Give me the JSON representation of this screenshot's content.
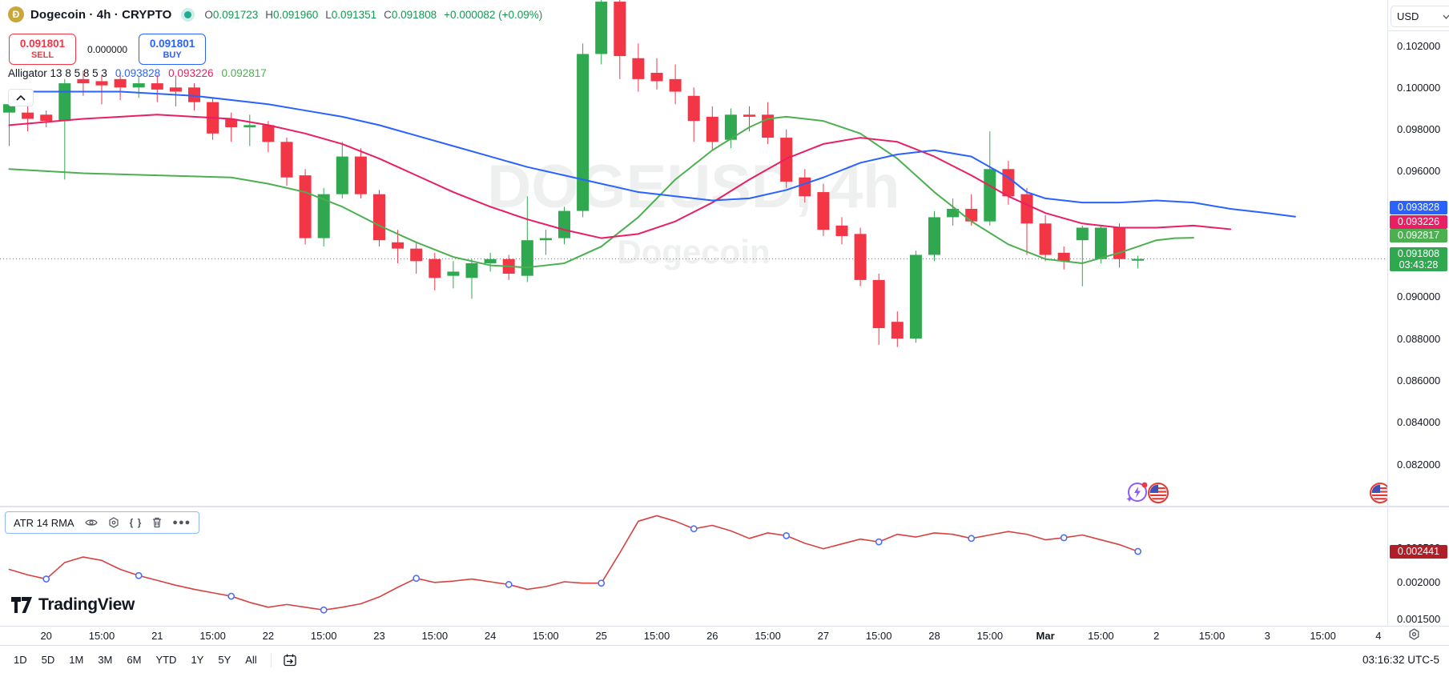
{
  "header": {
    "title": "Dogecoin · 4h · CRYPTO",
    "logo_letter": "Ð",
    "ohlc": {
      "o_label": "O",
      "o": "0.091723",
      "h_label": "H",
      "h": "0.091960",
      "l_label": "L",
      "l": "0.091351",
      "c_label": "C",
      "c": "0.091808",
      "change": "+0.000082 (+0.09%)"
    }
  },
  "trade": {
    "sell_price": "0.091801",
    "sell_label": "SELL",
    "spread": "0.000000",
    "buy_price": "0.091801",
    "buy_label": "BUY"
  },
  "alligator_legend": {
    "name": "Alligator",
    "params": "13 8 5 8 5 3",
    "jaw_value": "0.093828",
    "teeth_value": "0.093226",
    "lips_value": "0.092817"
  },
  "watermark": {
    "title": "DOGEUSD, 4h",
    "subtitle": "Dogecoin"
  },
  "price_axis": {
    "currency": "USD",
    "ticks": [
      "0.102000",
      "0.100000",
      "0.098000",
      "0.096000",
      "0.090000",
      "0.088000",
      "0.086000",
      "0.084000",
      "0.082000"
    ],
    "tags": [
      {
        "value": "0.093828",
        "color": "#2962FF"
      },
      {
        "value": "0.093226",
        "color": "#E91E63"
      },
      {
        "value": "0.092817",
        "color": "#4CAF50"
      }
    ],
    "last_tag": {
      "value": "0.091808",
      "countdown": "03:43:28",
      "color": "#2FA84F"
    }
  },
  "atr_pane": {
    "legend": "ATR 14 RMA",
    "ticks": [
      "0.002500",
      "0.002000",
      "0.001500"
    ],
    "tag": {
      "value": "0.002441",
      "color": "#B01E28"
    }
  },
  "time_axis": {
    "labels": [
      {
        "bar": 2,
        "text": "20",
        "kind": "day"
      },
      {
        "bar": 5,
        "text": "15:00",
        "kind": "time"
      },
      {
        "bar": 8,
        "text": "21",
        "kind": "day"
      },
      {
        "bar": 11,
        "text": "15:00",
        "kind": "time"
      },
      {
        "bar": 14,
        "text": "22",
        "kind": "day"
      },
      {
        "bar": 17,
        "text": "15:00",
        "kind": "time"
      },
      {
        "bar": 20,
        "text": "23",
        "kind": "day"
      },
      {
        "bar": 23,
        "text": "15:00",
        "kind": "time"
      },
      {
        "bar": 26,
        "text": "24",
        "kind": "day"
      },
      {
        "bar": 29,
        "text": "15:00",
        "kind": "time"
      },
      {
        "bar": 32,
        "text": "25",
        "kind": "day"
      },
      {
        "bar": 35,
        "text": "15:00",
        "kind": "time"
      },
      {
        "bar": 38,
        "text": "26",
        "kind": "day"
      },
      {
        "bar": 41,
        "text": "15:00",
        "kind": "time"
      },
      {
        "bar": 44,
        "text": "27",
        "kind": "day"
      },
      {
        "bar": 47,
        "text": "15:00",
        "kind": "time"
      },
      {
        "bar": 50,
        "text": "28",
        "kind": "day"
      },
      {
        "bar": 53,
        "text": "15:00",
        "kind": "time"
      },
      {
        "bar": 56,
        "text": "Mar",
        "kind": "month"
      },
      {
        "bar": 59,
        "text": "15:00",
        "kind": "time"
      },
      {
        "bar": 62,
        "text": "2",
        "kind": "day"
      },
      {
        "bar": 65,
        "text": "15:00",
        "kind": "time"
      },
      {
        "bar": 68,
        "text": "3",
        "kind": "day"
      },
      {
        "bar": 71,
        "text": "15:00",
        "kind": "time"
      },
      {
        "bar": 74,
        "text": "4",
        "kind": "day"
      }
    ]
  },
  "toolbar": {
    "ranges": [
      "1D",
      "5D",
      "1M",
      "3M",
      "6M",
      "YTD",
      "1Y",
      "5Y",
      "All"
    ],
    "clock": "03:16:32 UTC-5"
  },
  "chart_data": {
    "type": "candlestick",
    "symbol": "DOGEUSD",
    "interval": "4h",
    "last_price": 0.091808,
    "price_axis_range": [
      0.08001,
      0.10418
    ],
    "atr_axis_range": [
      0.001384,
      0.002953
    ],
    "colors": {
      "up": "#2FA84F",
      "down": "#F23645",
      "jaw": "#2962FF",
      "teeth": "#E91E63",
      "lips": "#4CAF50",
      "atr_line": "#D7413E",
      "atr_marker": "#4F6EF7"
    },
    "candles": [
      [
        0.0988,
        0.0994,
        0.0972,
        0.0992
      ],
      [
        0.0988,
        0.0991,
        0.0979,
        0.0985
      ],
      [
        0.0987,
        0.0989,
        0.0981,
        0.0984
      ],
      [
        0.0984,
        0.1004,
        0.0956,
        0.1002
      ],
      [
        0.1004,
        0.1008,
        0.0996,
        0.1002
      ],
      [
        0.1003,
        0.1006,
        0.0992,
        0.1001
      ],
      [
        0.1004,
        0.1007,
        0.0994,
        0.1
      ],
      [
        0.1,
        0.1005,
        0.0995,
        0.1002
      ],
      [
        0.1002,
        0.1006,
        0.0993,
        0.0999
      ],
      [
        0.1,
        0.1005,
        0.0991,
        0.0998
      ],
      [
        0.1,
        0.1002,
        0.0989,
        0.0993
      ],
      [
        0.0993,
        0.0995,
        0.0975,
        0.0978
      ],
      [
        0.0985,
        0.0988,
        0.0974,
        0.0981
      ],
      [
        0.0981,
        0.0987,
        0.0972,
        0.0982
      ],
      [
        0.0982,
        0.0984,
        0.0969,
        0.0974
      ],
      [
        0.0974,
        0.0976,
        0.0953,
        0.0957
      ],
      [
        0.0958,
        0.0961,
        0.0925,
        0.0928
      ],
      [
        0.0928,
        0.0952,
        0.0924,
        0.0949
      ],
      [
        0.0949,
        0.0974,
        0.0947,
        0.0967
      ],
      [
        0.0967,
        0.0971,
        0.0947,
        0.0949
      ],
      [
        0.0949,
        0.0951,
        0.0924,
        0.0927
      ],
      [
        0.0926,
        0.0932,
        0.0916,
        0.0923
      ],
      [
        0.0923,
        0.0926,
        0.0911,
        0.0917
      ],
      [
        0.0918,
        0.0921,
        0.0903,
        0.0909
      ],
      [
        0.091,
        0.0917,
        0.0904,
        0.0912
      ],
      [
        0.0909,
        0.0918,
        0.0899,
        0.0916
      ],
      [
        0.0916,
        0.0921,
        0.0912,
        0.0918
      ],
      [
        0.0918,
        0.092,
        0.0908,
        0.0911
      ],
      [
        0.091,
        0.0948,
        0.0907,
        0.0927
      ],
      [
        0.0927,
        0.0932,
        0.092,
        0.0928
      ],
      [
        0.0928,
        0.0943,
        0.0925,
        0.0941
      ],
      [
        0.0941,
        0.1021,
        0.0938,
        0.1016
      ],
      [
        0.1016,
        0.1044,
        0.1011,
        0.1041
      ],
      [
        0.1041,
        0.1043,
        0.1004,
        0.1015
      ],
      [
        0.1014,
        0.1021,
        0.0998,
        0.1004
      ],
      [
        0.1007,
        0.1014,
        0.0999,
        0.1003
      ],
      [
        0.1004,
        0.1011,
        0.0992,
        0.0998
      ],
      [
        0.0996,
        0.1,
        0.0974,
        0.0984
      ],
      [
        0.0986,
        0.0991,
        0.097,
        0.0974
      ],
      [
        0.0975,
        0.099,
        0.0971,
        0.0987
      ],
      [
        0.0987,
        0.0991,
        0.0979,
        0.0986
      ],
      [
        0.0987,
        0.0993,
        0.0973,
        0.0976
      ],
      [
        0.0976,
        0.098,
        0.0952,
        0.0955
      ],
      [
        0.0957,
        0.0961,
        0.0945,
        0.0948
      ],
      [
        0.095,
        0.0954,
        0.0929,
        0.0932
      ],
      [
        0.0934,
        0.0938,
        0.0925,
        0.0929
      ],
      [
        0.093,
        0.0933,
        0.0905,
        0.0908
      ],
      [
        0.0908,
        0.0911,
        0.0877,
        0.0885
      ],
      [
        0.0888,
        0.0893,
        0.0876,
        0.088
      ],
      [
        0.088,
        0.0922,
        0.0878,
        0.092
      ],
      [
        0.092,
        0.0941,
        0.0917,
        0.0938
      ],
      [
        0.0938,
        0.0947,
        0.0934,
        0.0942
      ],
      [
        0.0942,
        0.0949,
        0.0934,
        0.0936
      ],
      [
        0.0936,
        0.0979,
        0.0934,
        0.0961
      ],
      [
        0.0961,
        0.0965,
        0.0944,
        0.0948
      ],
      [
        0.0949,
        0.0952,
        0.092,
        0.0935
      ],
      [
        0.0935,
        0.0939,
        0.0917,
        0.092
      ],
      [
        0.0921,
        0.0924,
        0.0913,
        0.0917
      ],
      [
        0.0927,
        0.0934,
        0.0905,
        0.0933
      ],
      [
        0.0918,
        0.0934,
        0.0916,
        0.0933
      ],
      [
        0.0933,
        0.0935,
        0.0914,
        0.0918
      ],
      [
        0.091723,
        0.09196,
        0.091351,
        0.091808
      ]
    ],
    "alligator": {
      "jaw": [
        [
          0,
          0.0998
        ],
        [
          6,
          0.0998
        ],
        [
          10,
          0.0996
        ],
        [
          14,
          0.0992
        ],
        [
          16,
          0.0989
        ],
        [
          18,
          0.0986
        ],
        [
          20,
          0.0982
        ],
        [
          22,
          0.0977
        ],
        [
          24,
          0.0972
        ],
        [
          26,
          0.0967
        ],
        [
          28,
          0.0962
        ],
        [
          30,
          0.0958
        ],
        [
          32,
          0.0954
        ],
        [
          34,
          0.095
        ],
        [
          36,
          0.0948
        ],
        [
          38,
          0.0946
        ],
        [
          40,
          0.0947
        ],
        [
          42,
          0.0951
        ],
        [
          44,
          0.0957
        ],
        [
          46,
          0.0964
        ],
        [
          48,
          0.0968
        ],
        [
          50,
          0.097
        ],
        [
          52,
          0.0967
        ],
        [
          54,
          0.0957
        ],
        [
          55,
          0.095
        ],
        [
          56,
          0.0947
        ],
        [
          58,
          0.0945
        ],
        [
          60,
          0.0945
        ],
        [
          62,
          0.0946
        ],
        [
          64,
          0.0945
        ],
        [
          66,
          0.0942
        ],
        [
          68,
          0.094
        ],
        [
          69.5,
          0.093828
        ]
      ],
      "teeth": [
        [
          0,
          0.0982
        ],
        [
          4,
          0.0985
        ],
        [
          8,
          0.0987
        ],
        [
          12,
          0.0985
        ],
        [
          14,
          0.0982
        ],
        [
          16,
          0.0978
        ],
        [
          18,
          0.0973
        ],
        [
          20,
          0.0966
        ],
        [
          22,
          0.0958
        ],
        [
          24,
          0.095
        ],
        [
          26,
          0.0943
        ],
        [
          28,
          0.0937
        ],
        [
          30,
          0.0932
        ],
        [
          32,
          0.0928
        ],
        [
          34,
          0.093
        ],
        [
          36,
          0.0936
        ],
        [
          38,
          0.0945
        ],
        [
          40,
          0.0956
        ],
        [
          42,
          0.0966
        ],
        [
          44,
          0.0973
        ],
        [
          46,
          0.0976
        ],
        [
          48,
          0.0974
        ],
        [
          50,
          0.0967
        ],
        [
          52,
          0.0958
        ],
        [
          54,
          0.0948
        ],
        [
          56,
          0.094
        ],
        [
          58,
          0.0935
        ],
        [
          60,
          0.0933
        ],
        [
          62,
          0.0933
        ],
        [
          64,
          0.0934
        ],
        [
          66,
          0.093226
        ]
      ],
      "lips": [
        [
          0,
          0.0961
        ],
        [
          4,
          0.0959
        ],
        [
          8,
          0.0958
        ],
        [
          12,
          0.0957
        ],
        [
          14,
          0.0954
        ],
        [
          16,
          0.095
        ],
        [
          18,
          0.0943
        ],
        [
          20,
          0.0934
        ],
        [
          22,
          0.0926
        ],
        [
          24,
          0.0919
        ],
        [
          26,
          0.0915
        ],
        [
          28,
          0.0914
        ],
        [
          30,
          0.0916
        ],
        [
          32,
          0.0924
        ],
        [
          34,
          0.0938
        ],
        [
          36,
          0.0956
        ],
        [
          38,
          0.097
        ],
        [
          40,
          0.0981
        ],
        [
          41,
          0.0985
        ],
        [
          42,
          0.0986
        ],
        [
          44,
          0.0984
        ],
        [
          46,
          0.0978
        ],
        [
          48,
          0.0966
        ],
        [
          50,
          0.095
        ],
        [
          52,
          0.0936
        ],
        [
          54,
          0.0925
        ],
        [
          56,
          0.0918
        ],
        [
          58,
          0.0916
        ],
        [
          60,
          0.0921
        ],
        [
          62,
          0.0927
        ],
        [
          63,
          0.0928
        ],
        [
          64,
          0.092817
        ]
      ]
    },
    "atr": {
      "period": 14,
      "smoothing": "RMA",
      "last": 0.002441,
      "values": [
        0.00218,
        0.0021,
        0.00204,
        0.00228,
        0.00236,
        0.00231,
        0.00218,
        0.00209,
        0.00202,
        0.00195,
        0.00189,
        0.00184,
        0.00179,
        0.0017,
        0.00163,
        0.00167,
        0.00163,
        0.00159,
        0.00163,
        0.00168,
        0.00178,
        0.00192,
        0.00205,
        0.00199,
        0.00201,
        0.00204,
        0.002,
        0.00196,
        0.00189,
        0.00193,
        0.002,
        0.00198,
        0.00198,
        0.00242,
        0.00288,
        0.00296,
        0.00288,
        0.00277,
        0.00282,
        0.00274,
        0.00263,
        0.00271,
        0.00267,
        0.00256,
        0.00248,
        0.00255,
        0.00262,
        0.00258,
        0.00269,
        0.00265,
        0.00271,
        0.00269,
        0.00263,
        0.00268,
        0.00273,
        0.00269,
        0.00261,
        0.00264,
        0.00268,
        0.00261,
        0.00254,
        0.002441
      ],
      "marker_bars": [
        2,
        7,
        12,
        17,
        22,
        27,
        32,
        37,
        42,
        47,
        52,
        57,
        61
      ]
    }
  }
}
